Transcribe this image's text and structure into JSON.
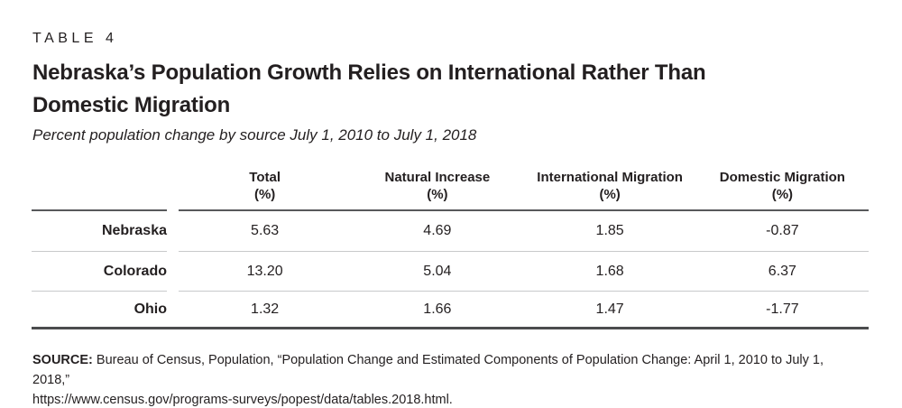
{
  "header": {
    "table_label": "TABLE 4",
    "title_line1": "Nebraska’s Population Growth Relies on International Rather Than",
    "title_line2": "Domestic Migration",
    "subtitle": "Percent population change by source July 1, 2010 to July 1, 2018"
  },
  "table": {
    "columns": [
      {
        "line1": "Total",
        "line2": "(%)"
      },
      {
        "line1": "Natural Increase",
        "line2": "(%)"
      },
      {
        "line1": "International Migration",
        "line2": "(%)"
      },
      {
        "line1": "Domestic Migration",
        "line2": "(%)"
      }
    ],
    "rows": [
      {
        "label": "Nebraska",
        "values": [
          "5.63",
          "4.69",
          "1.85",
          "-0.87"
        ]
      },
      {
        "label": "Colorado",
        "values": [
          "13.20",
          "5.04",
          "1.68",
          "6.37"
        ]
      },
      {
        "label": "Ohio",
        "values": [
          "1.32",
          "1.66",
          "1.47",
          "-1.77"
        ]
      }
    ]
  },
  "source": {
    "label": "SOURCE:",
    "line1": "Bureau of Census, Population, “Population Change and Estimated Components of Population Change: April 1, 2010 to July 1, 2018,”",
    "line2": "https://www.census.gov/programs-surveys/popest/data/tables.2018.html."
  },
  "colors": {
    "text": "#231f20",
    "rule_dark": "#58595b",
    "rule_light": "#c8c9cb",
    "rule_bottom": "#4b4c4e",
    "background": "#ffffff"
  },
  "chart_data": {
    "type": "table",
    "title": "Nebraska’s Population Growth Relies on International Rather Than Domestic Migration",
    "subtitle": "Percent population change by source July 1, 2010 to July 1, 2018",
    "columns": [
      "Total (%)",
      "Natural Increase (%)",
      "International Migration (%)",
      "Domestic Migration (%)"
    ],
    "rows": [
      {
        "label": "Nebraska",
        "values": [
          5.63,
          4.69,
          1.85,
          -0.87
        ]
      },
      {
        "label": "Colorado",
        "values": [
          13.2,
          5.04,
          1.68,
          6.37
        ]
      },
      {
        "label": "Ohio",
        "values": [
          1.32,
          1.66,
          1.47,
          -1.77
        ]
      }
    ]
  }
}
